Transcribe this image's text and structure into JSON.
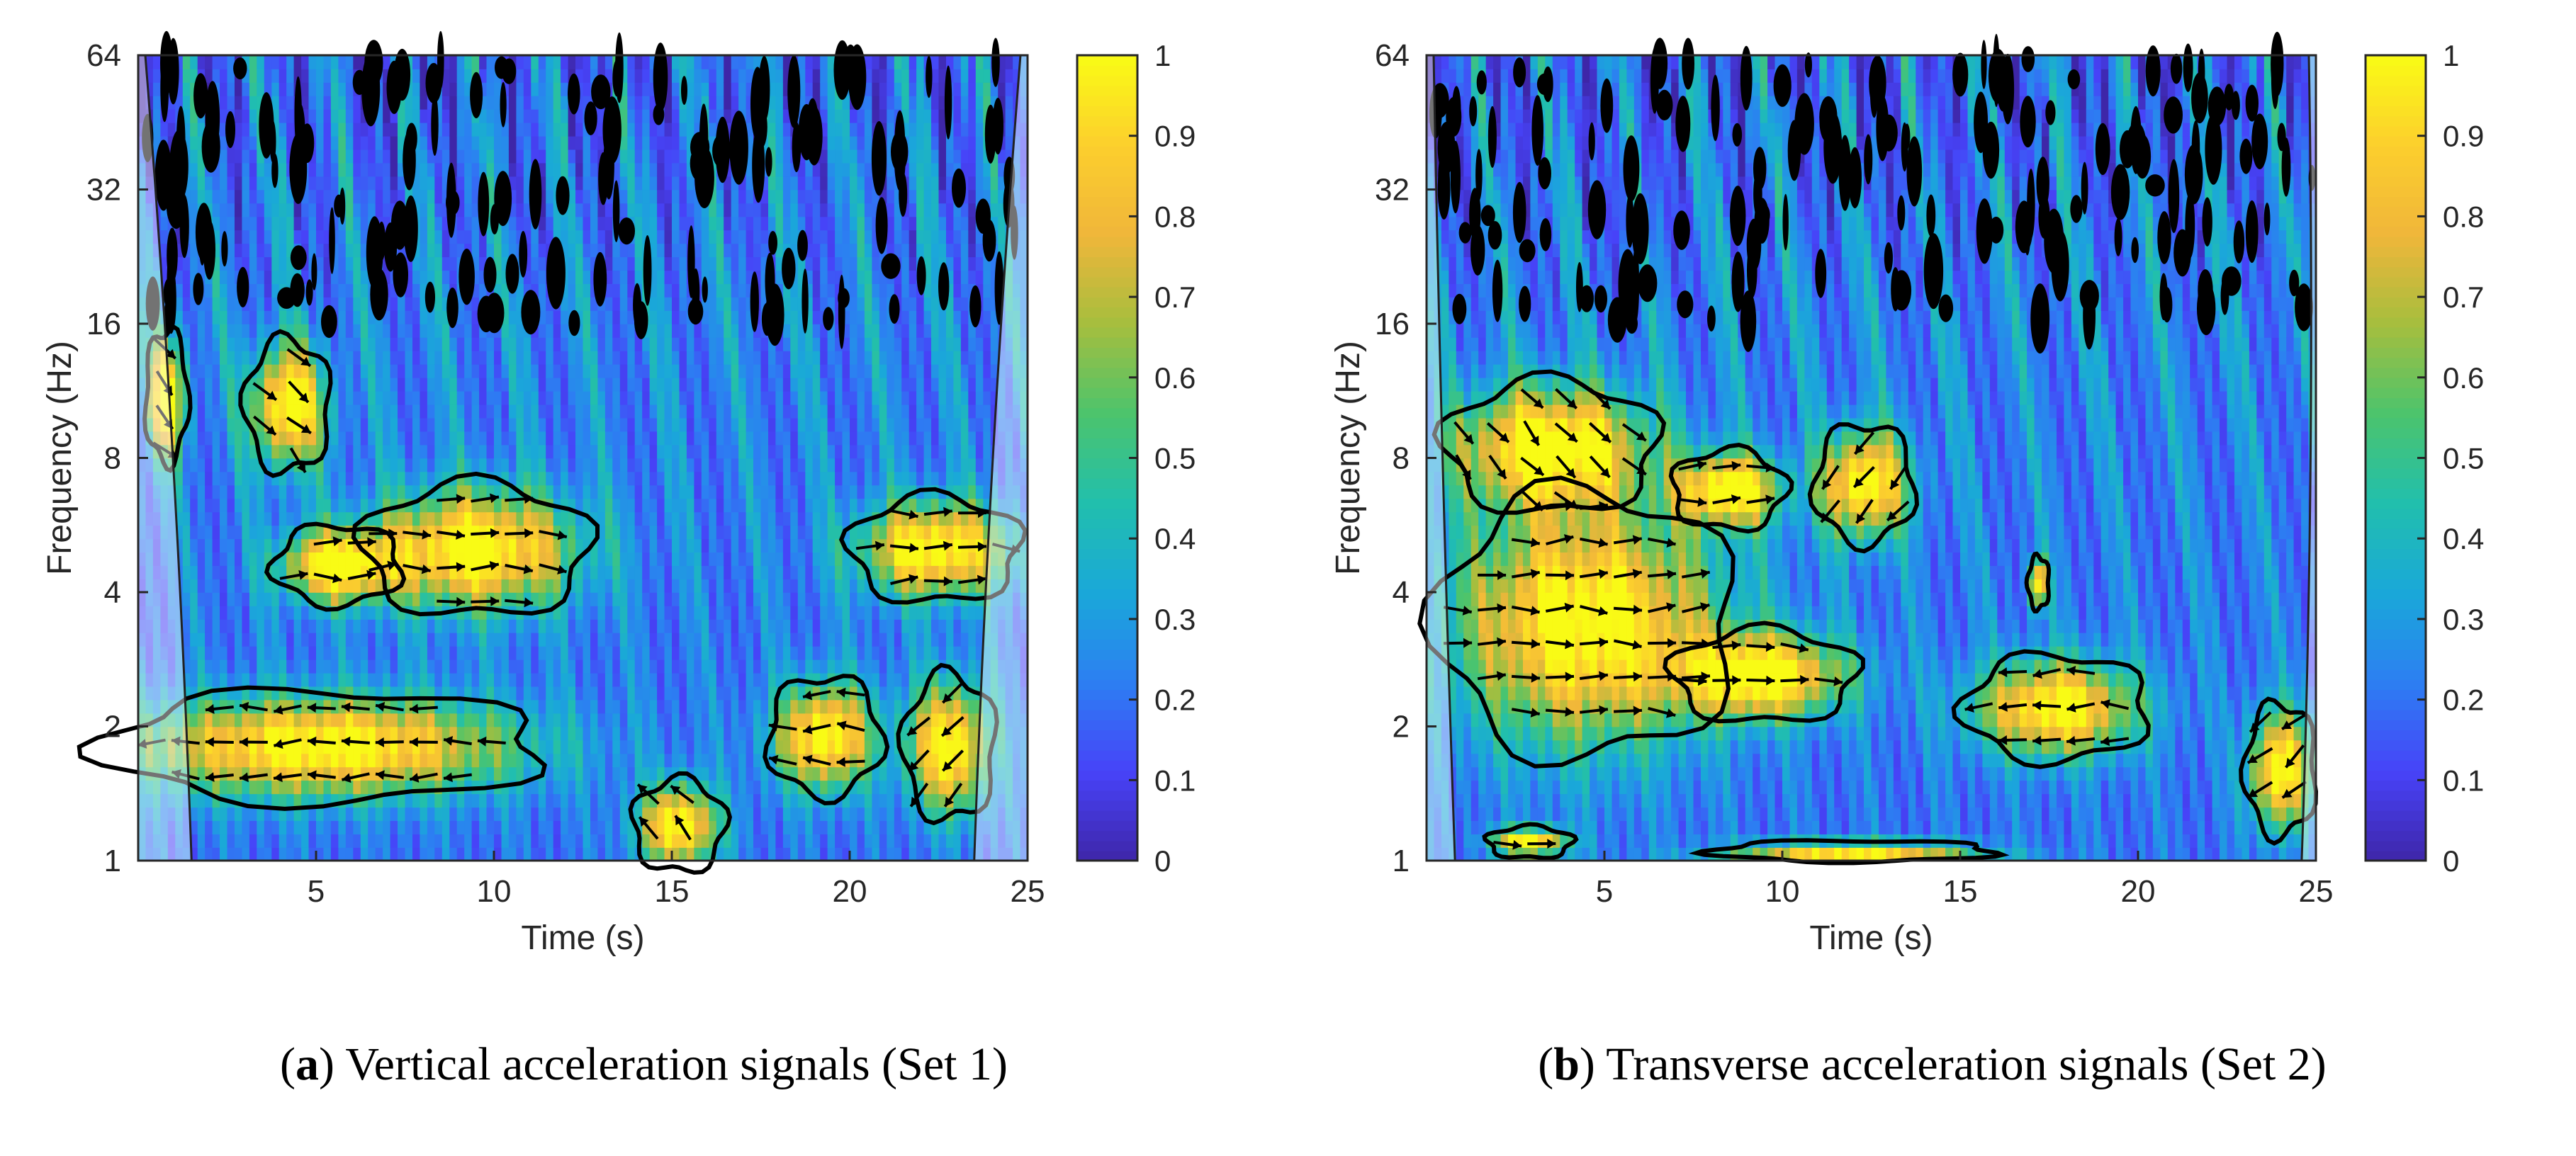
{
  "chart_data": [
    {
      "type": "heatmap",
      "subtype": "wavelet-coherence",
      "panel_label": "a",
      "caption": "Vertical acceleration signals (Set 1)",
      "xlabel": "Time (s)",
      "ylabel": "Frequency (Hz)",
      "xlim": [
        0,
        25
      ],
      "ylim": [
        1,
        64
      ],
      "yscale": "log2",
      "xticks": [
        "5",
        "10",
        "15",
        "20",
        "25"
      ],
      "xtick_values": [
        5,
        10,
        15,
        20,
        25
      ],
      "yticks": [
        "1",
        "2",
        "4",
        "8",
        "16",
        "32",
        "64"
      ],
      "ytick_values": [
        1,
        2,
        4,
        8,
        16,
        32,
        64
      ],
      "colorbar": {
        "min": 0,
        "max": 1,
        "ticks": [
          "0",
          "0.1",
          "0.2",
          "0.3",
          "0.4",
          "0.5",
          "0.6",
          "0.7",
          "0.8",
          "0.9",
          "1"
        ],
        "tick_values": [
          0,
          0.1,
          0.2,
          0.3,
          0.4,
          0.5,
          0.6,
          0.7,
          0.8,
          0.9,
          1
        ]
      },
      "colormap": [
        "#3e26a8",
        "#4743f8",
        "#2c7ff2",
        "#1aa8d9",
        "#21bfad",
        "#4cc46c",
        "#a6be3e",
        "#f0b63a",
        "#fccf2d",
        "#f9fb15"
      ],
      "significant_regions": [
        {
          "t_center": 5.2,
          "f_center": 1.8,
          "t_halfwidth": 6.2,
          "f_halfwidth_oct": 0.42,
          "phase": "left"
        },
        {
          "t_center": 9.5,
          "f_center": 5.0,
          "t_halfwidth": 3.2,
          "f_halfwidth_oct": 0.5,
          "phase": "right"
        },
        {
          "t_center": 19.3,
          "f_center": 1.9,
          "t_halfwidth": 1.6,
          "f_halfwidth_oct": 0.45,
          "phase": "left"
        },
        {
          "t_center": 22.4,
          "f_center": 5.0,
          "t_halfwidth": 2.4,
          "f_halfwidth_oct": 0.4,
          "phase": "right"
        },
        {
          "t_center": 22.8,
          "f_center": 1.8,
          "t_halfwidth": 1.3,
          "f_halfwidth_oct": 0.55,
          "phase": "down-left"
        },
        {
          "t_center": 4.2,
          "f_center": 10.5,
          "t_halfwidth": 1.2,
          "f_halfwidth_oct": 0.5,
          "phase": "down-right"
        },
        {
          "t_center": 5.6,
          "f_center": 4.6,
          "t_halfwidth": 1.8,
          "f_halfwidth_oct": 0.3,
          "phase": "right"
        },
        {
          "t_center": 15.2,
          "f_center": 1.2,
          "t_halfwidth": 1.3,
          "f_halfwidth_oct": 0.35,
          "phase": "up-left"
        },
        {
          "t_center": 0.8,
          "f_center": 11.0,
          "t_halfwidth": 0.6,
          "f_halfwidth_oct": 0.5,
          "phase": "down-right"
        }
      ],
      "coi_edges_s": [
        1.5,
        23.5
      ]
    },
    {
      "type": "heatmap",
      "subtype": "wavelet-coherence",
      "panel_label": "b",
      "caption": "Transverse acceleration signals (Set 2)",
      "xlabel": "Time (s)",
      "ylabel": "Frequency (Hz)",
      "xlim": [
        0,
        25
      ],
      "ylim": [
        1,
        64
      ],
      "yscale": "log2",
      "xticks": [
        "5",
        "10",
        "15",
        "20",
        "25"
      ],
      "xtick_values": [
        5,
        10,
        15,
        20,
        25
      ],
      "yticks": [
        "1",
        "2",
        "4",
        "8",
        "16",
        "32",
        "64"
      ],
      "ytick_values": [
        1,
        2,
        4,
        8,
        16,
        32,
        64
      ],
      "colorbar": {
        "min": 0,
        "max": 1,
        "ticks": [
          "0",
          "0.1",
          "0.2",
          "0.3",
          "0.4",
          "0.5",
          "0.6",
          "0.7",
          "0.8",
          "0.9",
          "1"
        ],
        "tick_values": [
          0,
          0.1,
          0.2,
          0.3,
          0.4,
          0.5,
          0.6,
          0.7,
          0.8,
          0.9,
          1
        ]
      },
      "colormap": [
        "#3e26a8",
        "#4743f8",
        "#2c7ff2",
        "#1aa8d9",
        "#21bfad",
        "#4cc46c",
        "#a6be3e",
        "#f0b63a",
        "#fccf2d",
        "#f9fb15"
      ],
      "significant_regions": [
        {
          "t_center": 4.5,
          "f_center": 3.4,
          "t_halfwidth": 4.2,
          "f_halfwidth_oct": 1.0,
          "phase": "right"
        },
        {
          "t_center": 9.5,
          "f_center": 2.6,
          "t_halfwidth": 2.6,
          "f_halfwidth_oct": 0.35,
          "phase": "right"
        },
        {
          "t_center": 17.7,
          "f_center": 2.2,
          "t_halfwidth": 2.6,
          "f_halfwidth_oct": 0.4,
          "phase": "left"
        },
        {
          "t_center": 3.5,
          "f_center": 8.5,
          "t_halfwidth": 3.0,
          "f_halfwidth_oct": 0.5,
          "phase": "down-right"
        },
        {
          "t_center": 8.5,
          "f_center": 6.8,
          "t_halfwidth": 1.6,
          "f_halfwidth_oct": 0.3,
          "phase": "right"
        },
        {
          "t_center": 12.3,
          "f_center": 7.0,
          "t_halfwidth": 1.4,
          "f_halfwidth_oct": 0.45,
          "phase": "down-left"
        },
        {
          "t_center": 24.0,
          "f_center": 1.6,
          "t_halfwidth": 1.0,
          "f_halfwidth_oct": 0.5,
          "phase": "down-left"
        },
        {
          "t_center": 12.0,
          "f_center": 1.05,
          "t_halfwidth": 4.0,
          "f_halfwidth_oct": 0.08,
          "phase": "right"
        },
        {
          "t_center": 17.2,
          "f_center": 4.2,
          "t_halfwidth": 0.3,
          "f_halfwidth_oct": 0.2,
          "phase": "down"
        },
        {
          "t_center": 2.9,
          "f_center": 1.1,
          "t_halfwidth": 1.2,
          "f_halfwidth_oct": 0.12,
          "phase": "right"
        }
      ],
      "coi_edges_s": [
        0.8,
        24.6
      ]
    }
  ]
}
